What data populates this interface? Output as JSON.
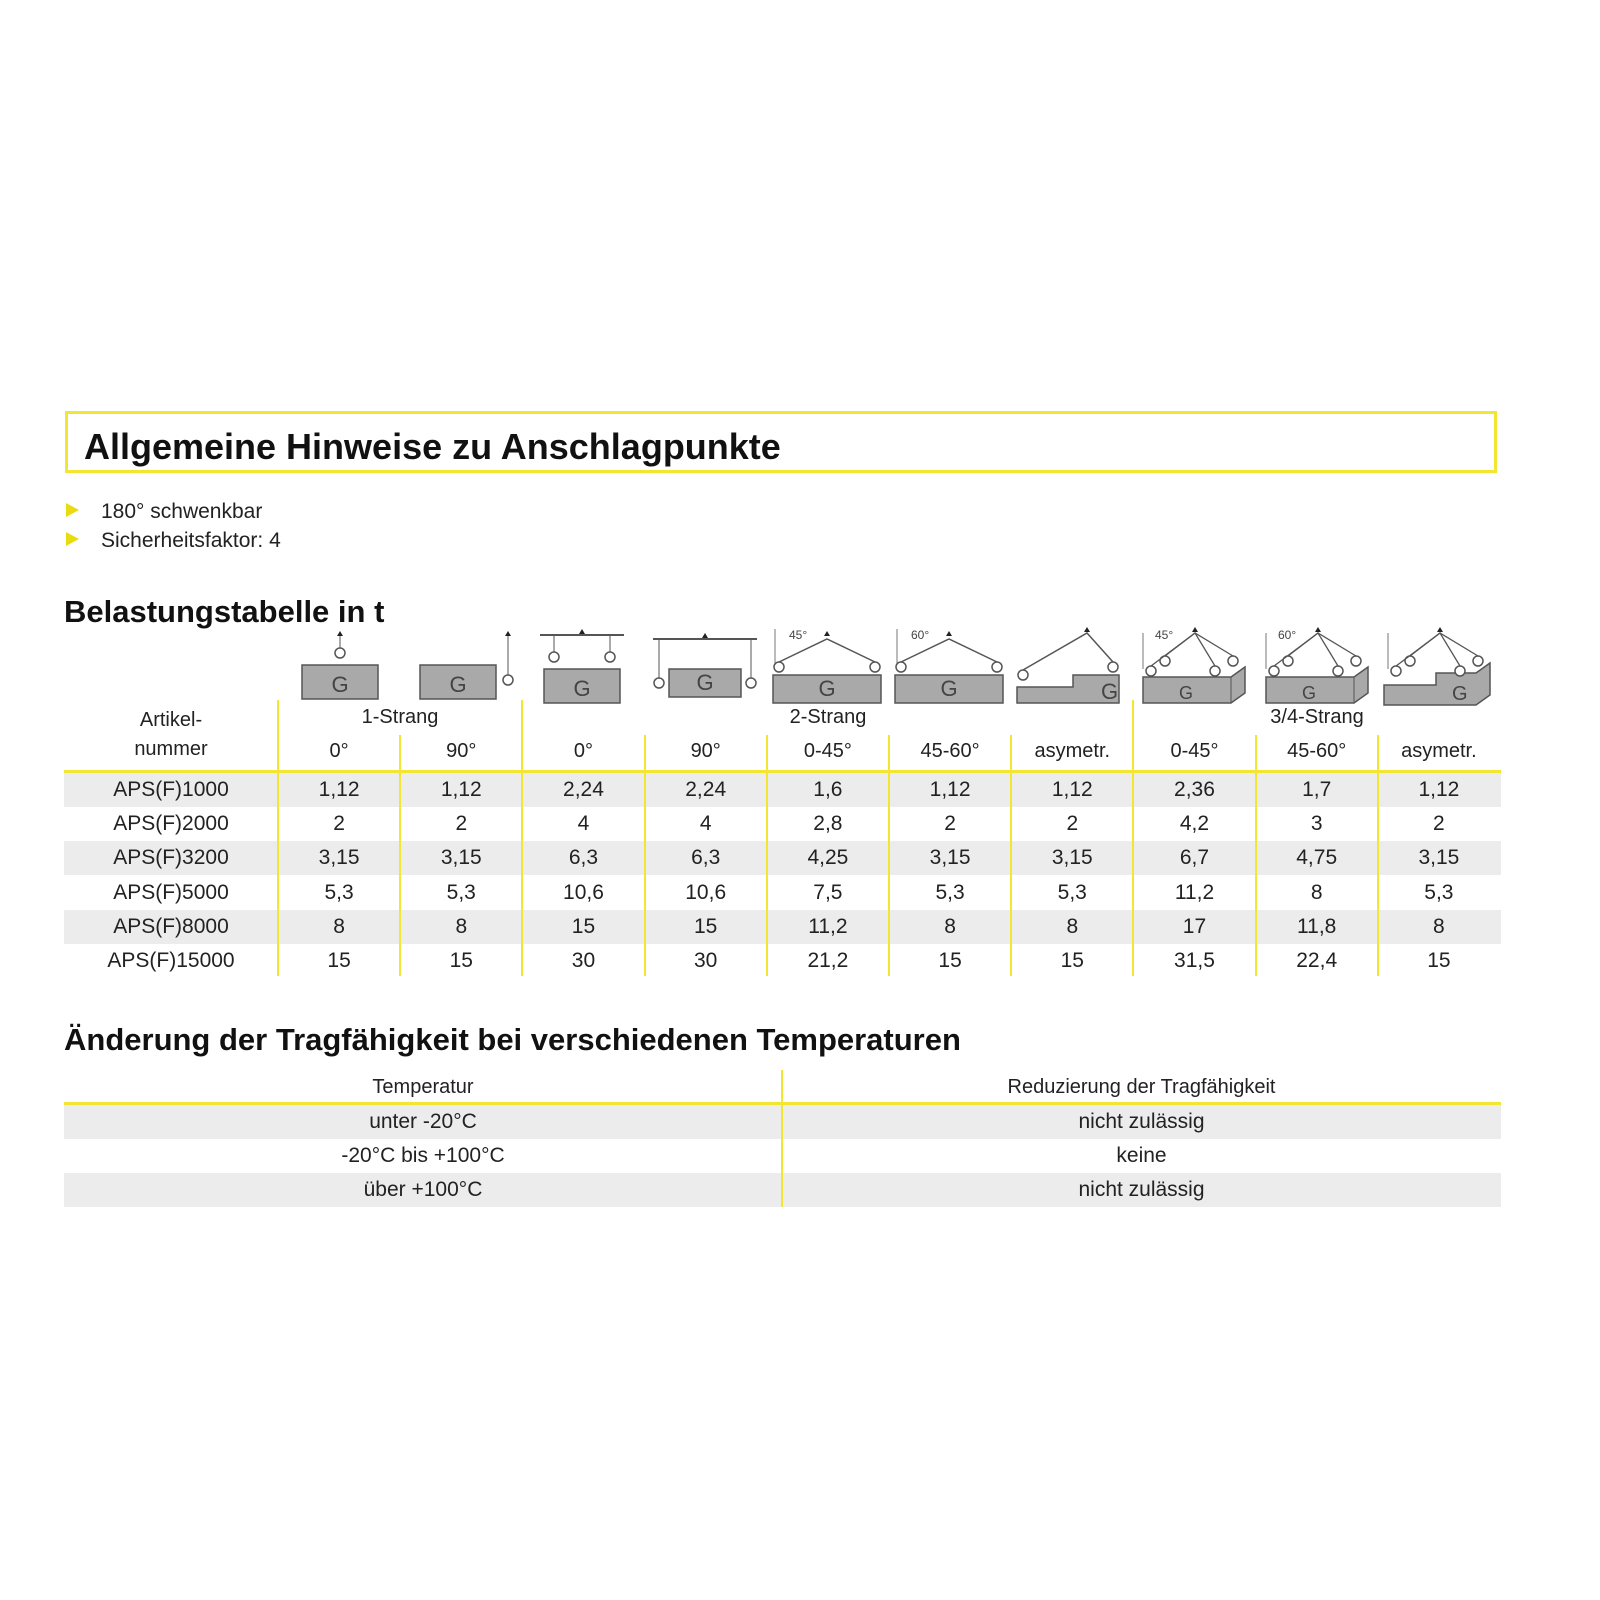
{
  "title": "Allgemeine Hinweise zu Anschlagpunkte",
  "bullets": [
    "180° schwenkbar",
    "Sicherheitsfaktor: 4"
  ],
  "load_table": {
    "heading": "Belastungstabelle in t",
    "article_header": [
      "Artikel-",
      "nummer"
    ],
    "groups": [
      "1-Strang",
      "2-Strang",
      "3/4-Strang"
    ],
    "columns": [
      "0°",
      "90°",
      "0°",
      "90°",
      "0-45°",
      "45-60°",
      "asymetr.",
      "0-45°",
      "45-60°",
      "asymetr."
    ],
    "icons": [
      "single-vertical-lift-icon",
      "single-side-lift-icon",
      "two-leg-beam-vertical-icon",
      "two-leg-beam-side-icon",
      "two-leg-45-icon",
      "two-leg-60-icon",
      "two-leg-asymmetric-icon",
      "four-leg-45-icon",
      "four-leg-60-icon",
      "four-leg-asymmetric-icon"
    ],
    "icon_angles": [
      "",
      "",
      "",
      "",
      "45°",
      "60°",
      "",
      "45°",
      "60°",
      ""
    ],
    "rows": [
      {
        "article": "APS(F)1000",
        "values": [
          "1,12",
          "1,12",
          "2,24",
          "2,24",
          "1,6",
          "1,12",
          "1,12",
          "2,36",
          "1,7",
          "1,12"
        ]
      },
      {
        "article": "APS(F)2000",
        "values": [
          "2",
          "2",
          "4",
          "4",
          "2,8",
          "2",
          "2",
          "4,2",
          "3",
          "2"
        ]
      },
      {
        "article": "APS(F)3200",
        "values": [
          "3,15",
          "3,15",
          "6,3",
          "6,3",
          "4,25",
          "3,15",
          "3,15",
          "6,7",
          "4,75",
          "3,15"
        ]
      },
      {
        "article": "APS(F)5000",
        "values": [
          "5,3",
          "5,3",
          "10,6",
          "10,6",
          "7,5",
          "5,3",
          "5,3",
          "11,2",
          "8",
          "5,3"
        ]
      },
      {
        "article": "APS(F)8000",
        "values": [
          "8",
          "8",
          "15",
          "15",
          "11,2",
          "8",
          "8",
          "17",
          "11,8",
          "8"
        ]
      },
      {
        "article": "APS(F)15000",
        "values": [
          "15",
          "15",
          "30",
          "30",
          "21,2",
          "15",
          "15",
          "31,5",
          "22,4",
          "15"
        ]
      }
    ]
  },
  "temp_table": {
    "heading": "Änderung der Tragfähigkeit bei verschiedenen Temperaturen",
    "headers": [
      "Temperatur",
      "Reduzierung der Tragfähigkeit"
    ],
    "rows": [
      [
        "unter -20°C",
        "nicht zulässig"
      ],
      [
        "-20°C bis +100°C",
        "keine"
      ],
      [
        "über +100°C",
        "nicht zulässig"
      ]
    ]
  },
  "colors": {
    "accent": "#f2e633",
    "row_stripe": "#ececec",
    "icon_fill": "#a9a9a9"
  }
}
